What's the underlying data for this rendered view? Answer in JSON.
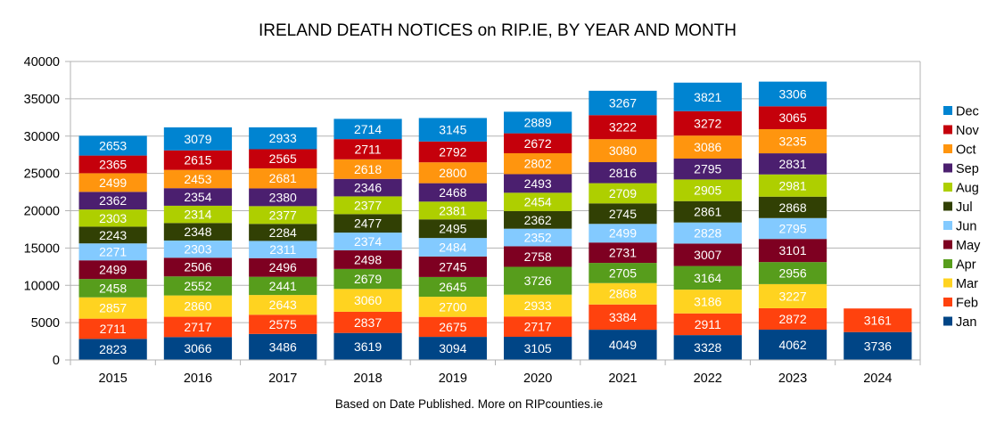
{
  "chart_data": {
    "type": "bar",
    "stacked": true,
    "title": "IRELAND DEATH NOTICES on RIP.IE, BY YEAR AND MONTH",
    "footnote": "Based on Date Published. More on RIPcounties.ie",
    "xlabel": "",
    "ylabel": "",
    "ylim": [
      0,
      40000
    ],
    "yticks": [
      0,
      5000,
      10000,
      15000,
      20000,
      25000,
      30000,
      35000,
      40000
    ],
    "grid": true,
    "legend_position": "right",
    "categories": [
      "2015",
      "2016",
      "2017",
      "2018",
      "2019",
      "2020",
      "2021",
      "2022",
      "2023",
      "2024"
    ],
    "series": [
      {
        "name": "Jan",
        "color": "#004586",
        "values": [
          2823,
          3066,
          3486,
          3619,
          3094,
          3105,
          4049,
          3328,
          4062,
          3736
        ]
      },
      {
        "name": "Feb",
        "color": "#ff420e",
        "values": [
          2711,
          2717,
          2575,
          2837,
          2675,
          2717,
          3384,
          2911,
          2872,
          3161
        ]
      },
      {
        "name": "Mar",
        "color": "#ffd320",
        "values": [
          2857,
          2860,
          2643,
          3060,
          2700,
          2933,
          2868,
          3186,
          3227,
          null
        ]
      },
      {
        "name": "Apr",
        "color": "#579d1c",
        "values": [
          2458,
          2552,
          2441,
          2679,
          2645,
          3726,
          2705,
          3164,
          2956,
          null
        ]
      },
      {
        "name": "May",
        "color": "#7e0021",
        "values": [
          2499,
          2506,
          2496,
          2498,
          2745,
          2758,
          2731,
          3007,
          3101,
          null
        ]
      },
      {
        "name": "Jun",
        "color": "#83caff",
        "values": [
          2271,
          2303,
          2311,
          2374,
          2484,
          2352,
          2499,
          2828,
          2795,
          null
        ]
      },
      {
        "name": "Jul",
        "color": "#314004",
        "values": [
          2243,
          2348,
          2284,
          2477,
          2495,
          2362,
          2745,
          2861,
          2868,
          null
        ]
      },
      {
        "name": "Aug",
        "color": "#aecf00",
        "values": [
          2303,
          2314,
          2377,
          2377,
          2381,
          2454,
          2709,
          2905,
          2981,
          null
        ]
      },
      {
        "name": "Sep",
        "color": "#4b1f6f",
        "values": [
          2362,
          2354,
          2380,
          2346,
          2468,
          2493,
          2816,
          2795,
          2831,
          null
        ]
      },
      {
        "name": "Oct",
        "color": "#ff950e",
        "values": [
          2499,
          2453,
          2681,
          2618,
          2800,
          2802,
          3080,
          3086,
          3235,
          null
        ]
      },
      {
        "name": "Nov",
        "color": "#c5000b",
        "values": [
          2365,
          2615,
          2565,
          2711,
          2792,
          2672,
          3222,
          3272,
          3065,
          null
        ]
      },
      {
        "name": "Dec",
        "color": "#0084d1",
        "values": [
          2653,
          3079,
          2933,
          2714,
          3145,
          2889,
          3267,
          3821,
          3306,
          null
        ]
      }
    ]
  }
}
